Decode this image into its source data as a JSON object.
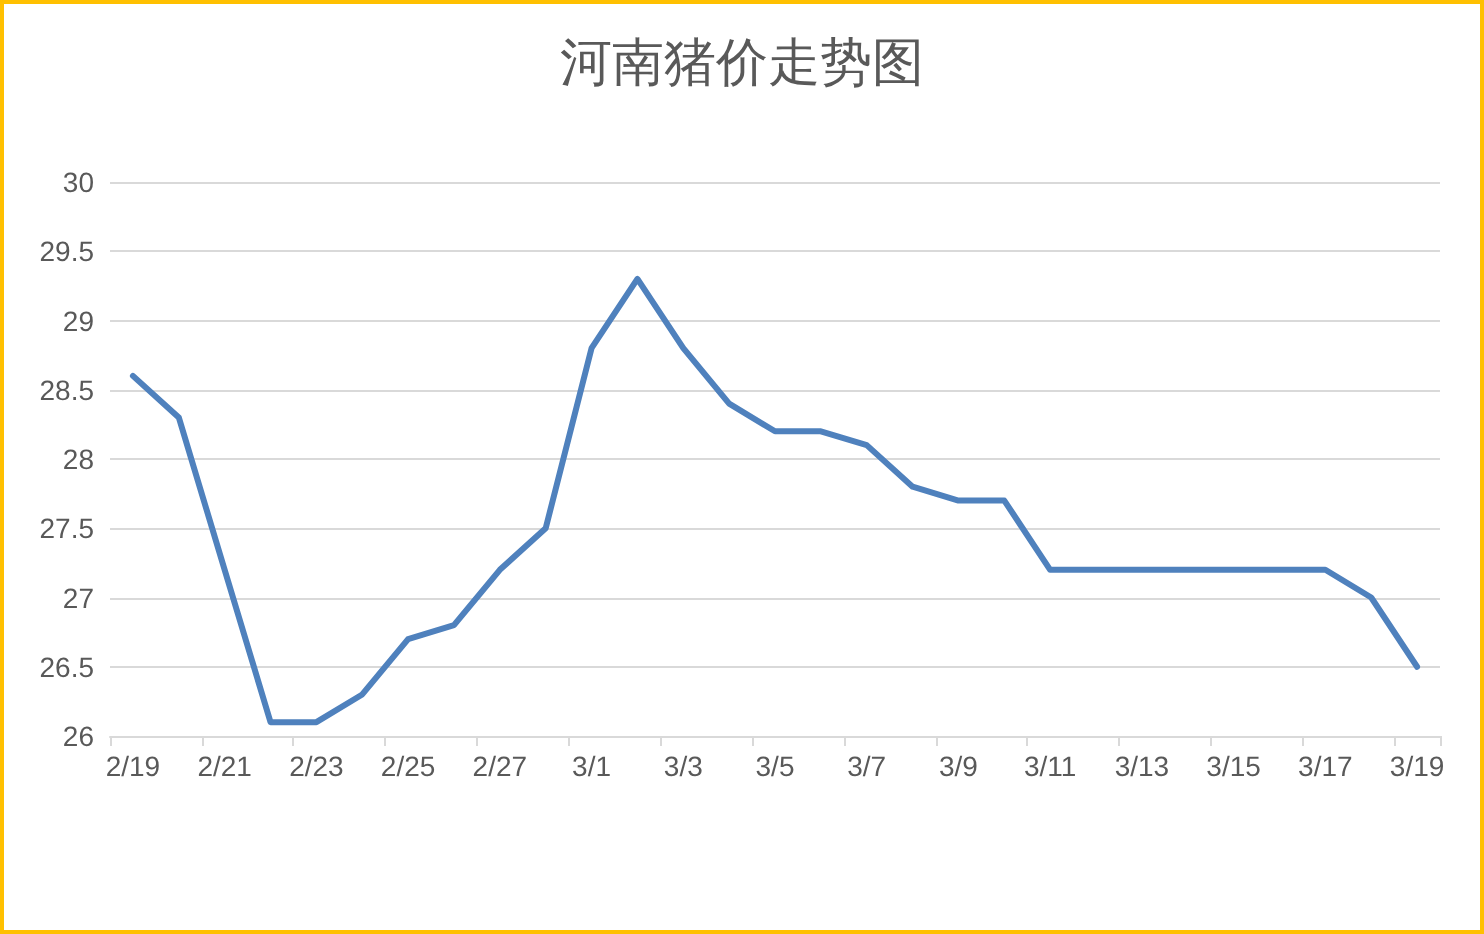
{
  "chart_data": {
    "type": "line",
    "title": "河南猪价走势图",
    "categories": [
      "2/19",
      null,
      "2/21",
      null,
      "2/23",
      null,
      "2/25",
      null,
      "2/27",
      null,
      "3/1",
      null,
      "3/3",
      null,
      "3/5",
      null,
      "3/7",
      null,
      "3/9",
      null,
      "3/11",
      null,
      "3/13",
      null,
      "3/15",
      null,
      "3/17",
      null,
      "3/19"
    ],
    "series": [
      {
        "color": "#4f81bd",
        "values": [
          28.6,
          28.3,
          27.2,
          26.1,
          26.1,
          26.3,
          26.7,
          26.8,
          27.2,
          27.5,
          28.8,
          29.3,
          28.8,
          28.4,
          28.2,
          28.2,
          28.1,
          27.8,
          27.7,
          27.7,
          27.2,
          27.2,
          27.2,
          27.2,
          27.2,
          27.2,
          27.2,
          27.0,
          26.5
        ]
      }
    ],
    "ylim": [
      26,
      30
    ],
    "yticks": [
      26,
      26.5,
      27,
      27.5,
      28,
      28.5,
      29,
      29.5,
      30
    ],
    "grid": "y",
    "marker": "none",
    "line_style": "solid"
  }
}
